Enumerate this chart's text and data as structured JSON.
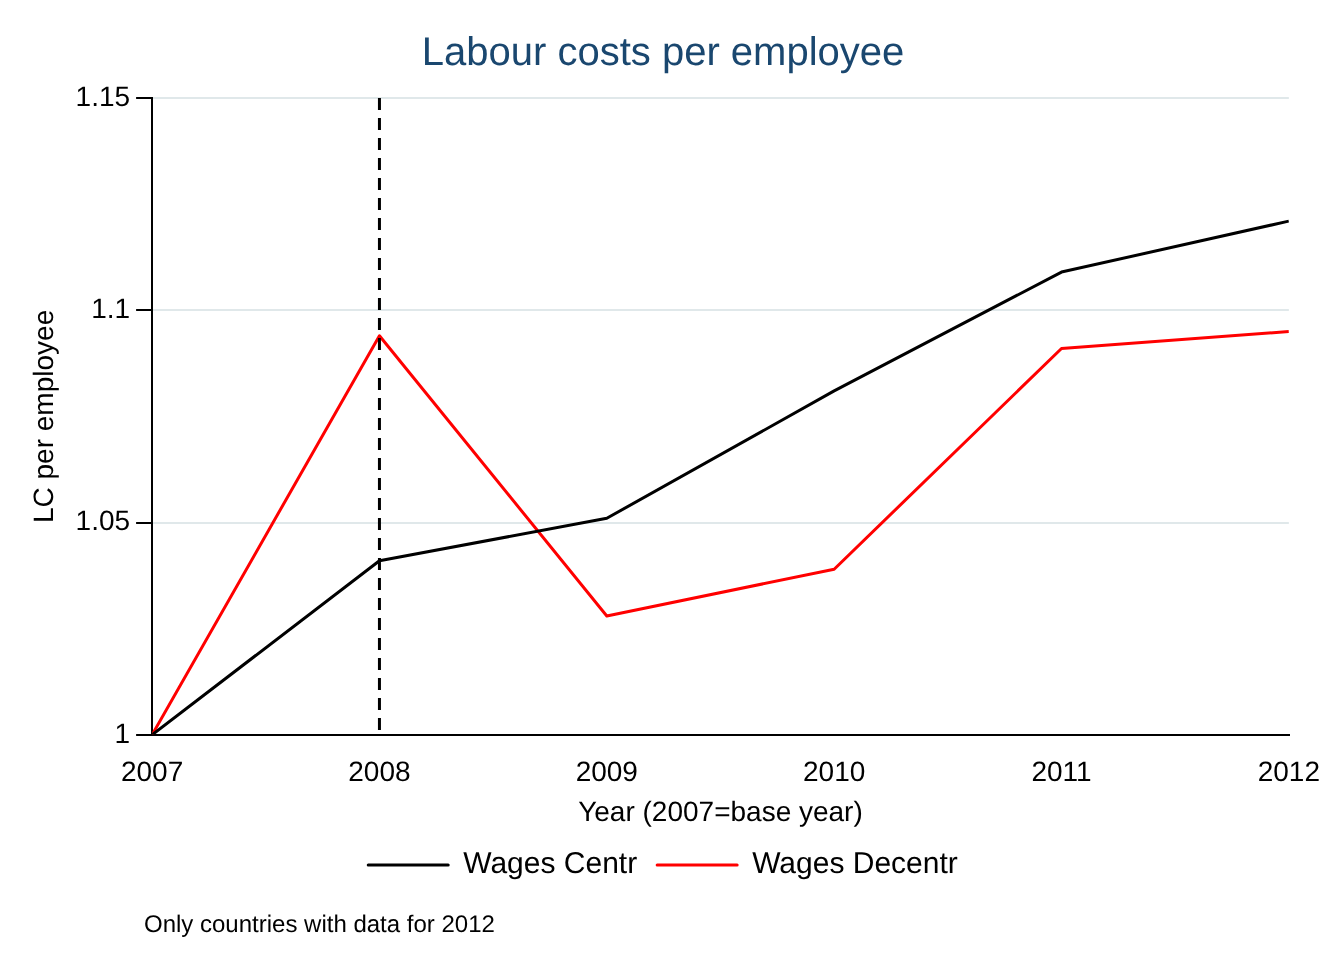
{
  "chart_data": {
    "type": "line",
    "title": "Labour costs per employee",
    "xlabel": "Year (2007=base year)",
    "ylabel": "LC per employee",
    "x": [
      2007,
      2008,
      2009,
      2010,
      2011,
      2012
    ],
    "series": [
      {
        "name": "Wages Centr",
        "color": "#000000",
        "values": [
          1,
          1.041,
          1.051,
          1.081,
          1.109,
          1.121
        ]
      },
      {
        "name": "Wages Decentr",
        "color": "#ff0000",
        "values": [
          1,
          1.094,
          1.028,
          1.039,
          1.091,
          1.095
        ]
      }
    ],
    "xlim": [
      2007,
      2012
    ],
    "xticks": [
      2007,
      2008,
      2009,
      2010,
      2011,
      2012
    ],
    "ylim": [
      1,
      1.15
    ],
    "yticks": [
      1,
      1.05,
      1.1,
      1.15
    ],
    "ref_lines": [
      {
        "axis": "x",
        "value": 2008,
        "color": "#000000",
        "line_style": "dashed"
      }
    ],
    "grid": "y",
    "legend": "bottom",
    "marker": "none",
    "line_style": "solid",
    "annotations": [
      "Only countries with data for 2012"
    ]
  }
}
